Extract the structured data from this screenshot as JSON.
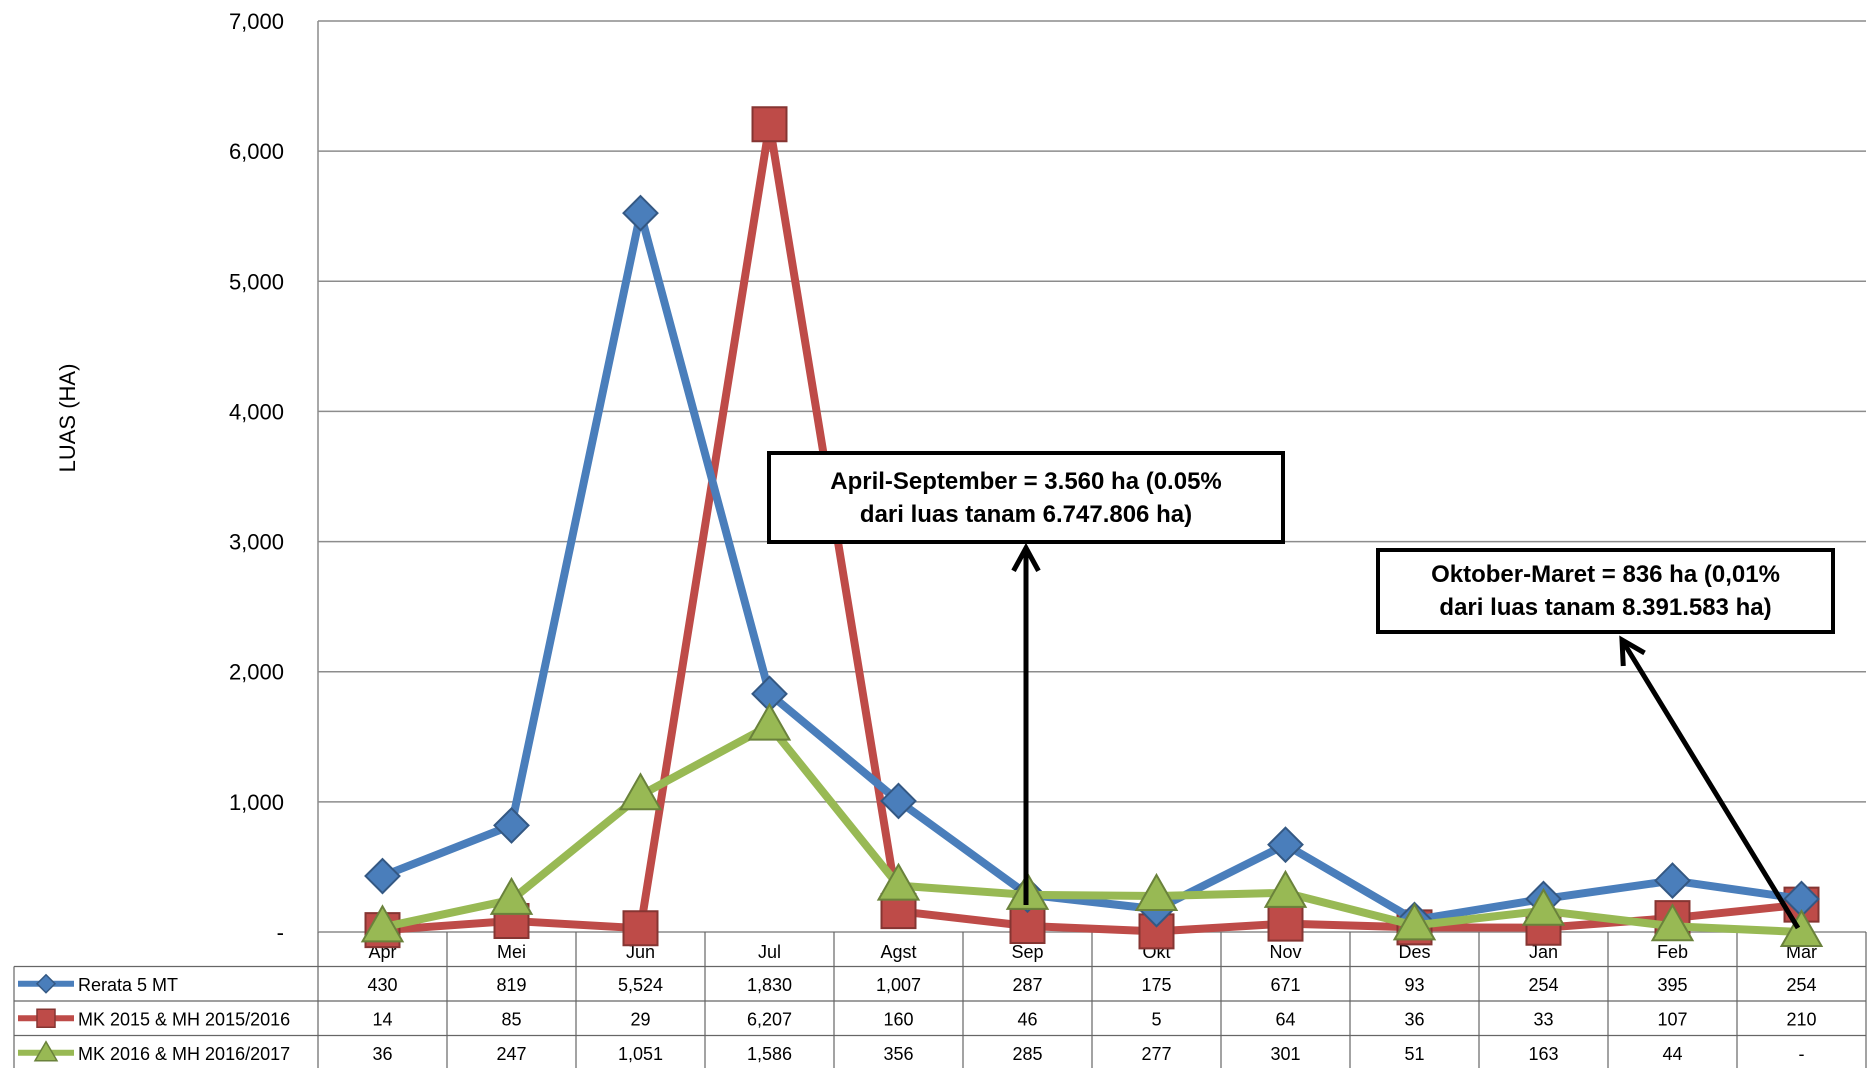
{
  "chart_data": {
    "type": "line",
    "ylabel": "LUAS (HA)",
    "ylim": [
      0,
      7000
    ],
    "ytick_labels": [
      "-",
      "1,000",
      "2,000",
      "3,000",
      "4,000",
      "5,000",
      "6,000",
      "7,000"
    ],
    "categories": [
      "Apr",
      "Mei",
      "Jun",
      "Jul",
      "Agst",
      "Sep",
      "Okt",
      "Nov",
      "Des",
      "Jan",
      "Feb",
      "Mar"
    ],
    "grid": true,
    "legend": "data-table",
    "series": [
      {
        "name": "Rerata 5 MT",
        "color": "#4a7ebb",
        "marker": "diamond",
        "values": [
          430,
          819,
          5524,
          1830,
          1007,
          287,
          175,
          671,
          93,
          254,
          395,
          254
        ],
        "labels": [
          "430",
          "819",
          "5,524",
          "1,830",
          "1,007",
          "287",
          "175",
          "671",
          "93",
          "254",
          "395",
          "254"
        ]
      },
      {
        "name": "MK 2015 & MH 2015/2016",
        "color": "#be4b48",
        "marker": "square",
        "values": [
          14,
          85,
          29,
          6207,
          160,
          46,
          5,
          64,
          36,
          33,
          107,
          210
        ],
        "labels": [
          "14",
          "85",
          "29",
          "6,207",
          "160",
          "46",
          "5",
          "64",
          "36",
          "33",
          "107",
          "210"
        ]
      },
      {
        "name": "MK 2016 & MH 2016/2017",
        "color": "#98b954",
        "marker": "triangle",
        "values": [
          36,
          247,
          1051,
          1586,
          356,
          285,
          277,
          301,
          51,
          163,
          44,
          0
        ],
        "labels": [
          "36",
          "247",
          "1,051",
          "1,586",
          "356",
          "285",
          "277",
          "301",
          "51",
          "163",
          "44",
          "-"
        ]
      }
    ],
    "annotations": [
      {
        "line1": "April-September = 3.560 ha  (0.05%",
        "line2": "dari luas tanam  6.747.806 ha)"
      },
      {
        "line1": "Oktober-Maret =  836 ha  (0,01%",
        "line2": "dari luas tanam 8.391.583  ha)"
      }
    ]
  }
}
